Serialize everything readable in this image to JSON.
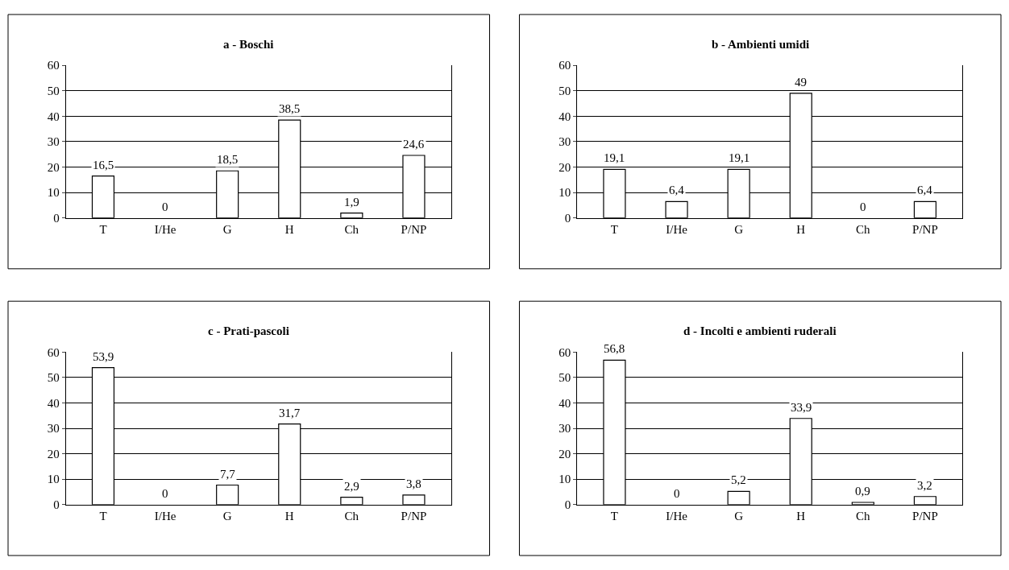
{
  "chart_data": [
    {
      "type": "bar",
      "title": "a - Boschi",
      "categories": [
        "T",
        "I/He",
        "G",
        "H",
        "Ch",
        "P/NP"
      ],
      "values": [
        16.5,
        0,
        18.5,
        38.5,
        1.9,
        24.6
      ],
      "value_labels": [
        "16,5",
        "0",
        "18,5",
        "38,5",
        "1,9",
        "24,6"
      ],
      "color": "#ffffff",
      "ylim": [
        0,
        60
      ],
      "yticks": [
        0,
        10,
        20,
        30,
        40,
        50,
        60
      ],
      "grid": "y"
    },
    {
      "type": "bar",
      "title": "b - Ambienti umidi",
      "categories": [
        "T",
        "I/He",
        "G",
        "H",
        "Ch",
        "P/NP"
      ],
      "values": [
        19.1,
        6.4,
        19.1,
        49,
        0,
        6.4
      ],
      "value_labels": [
        "19,1",
        "6,4",
        "19,1",
        "49",
        "0",
        "6,4"
      ],
      "color": "#ffffff",
      "ylim": [
        0,
        60
      ],
      "yticks": [
        0,
        10,
        20,
        30,
        40,
        50,
        60
      ],
      "grid": "y"
    },
    {
      "type": "bar",
      "title": "c - Prati-pascoli",
      "categories": [
        "T",
        "I/He",
        "G",
        "H",
        "Ch",
        "P/NP"
      ],
      "values": [
        53.9,
        0,
        7.7,
        31.7,
        2.9,
        3.8
      ],
      "value_labels": [
        "53,9",
        "0",
        "7,7",
        "31,7",
        "2,9",
        "3,8"
      ],
      "color": "#ffffff",
      "ylim": [
        0,
        60
      ],
      "yticks": [
        0,
        10,
        20,
        30,
        40,
        50,
        60
      ],
      "grid": "y"
    },
    {
      "type": "bar",
      "title": "d - Incolti e ambienti ruderali",
      "categories": [
        "T",
        "I/He",
        "G",
        "H",
        "Ch",
        "P/NP"
      ],
      "values": [
        56.8,
        0,
        5.2,
        33.9,
        0.9,
        3.2
      ],
      "value_labels": [
        "56,8",
        "0",
        "5,2",
        "33,9",
        "0,9",
        "3,2"
      ],
      "color": "#ffffff",
      "ylim": [
        0,
        60
      ],
      "yticks": [
        0,
        10,
        20,
        30,
        40,
        50,
        60
      ],
      "grid": "y"
    }
  ]
}
